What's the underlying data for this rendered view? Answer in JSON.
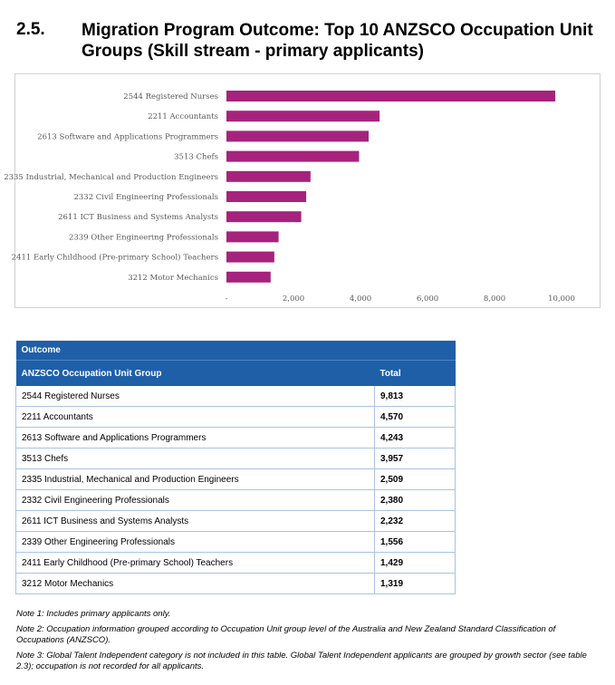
{
  "section": {
    "number": "2.5.",
    "title": "Migration Program Outcome: Top 10 ANZSCO Occupation Unit Groups (Skill stream - primary applicants)"
  },
  "chart_data": {
    "type": "bar",
    "orientation": "horizontal",
    "categories": [
      "2544 Registered Nurses",
      "2211 Accountants",
      "2613 Software and Applications Programmers",
      "3513 Chefs",
      "2335 Industrial, Mechanical and Production Engineers",
      "2332 Civil Engineering Professionals",
      "2611 ICT Business and Systems Analysts",
      "2339 Other Engineering Professionals",
      "2411 Early Childhood (Pre-primary School) Teachers",
      "3212 Motor Mechanics"
    ],
    "values": [
      9813,
      4570,
      4243,
      3957,
      2509,
      2380,
      2232,
      1556,
      1429,
      1319
    ],
    "xlim": [
      0,
      10000
    ],
    "x_ticks": [
      0,
      2000,
      4000,
      6000,
      8000,
      10000
    ],
    "x_tick_labels": [
      "-",
      "2,000",
      "4,000",
      "6,000",
      "8,000",
      "10,000"
    ],
    "bar_color": "#a5237c",
    "grid": false
  },
  "table": {
    "group_header": "Outcome",
    "col_occupation": "ANZSCO Occupation Unit Group",
    "col_total": "Total",
    "rows": [
      {
        "occupation": "2544 Registered Nurses",
        "total": "9,813"
      },
      {
        "occupation": "2211 Accountants",
        "total": "4,570"
      },
      {
        "occupation": "2613 Software and Applications Programmers",
        "total": "4,243"
      },
      {
        "occupation": "3513 Chefs",
        "total": "3,957"
      },
      {
        "occupation": "2335 Industrial, Mechanical and Production Engineers",
        "total": "2,509"
      },
      {
        "occupation": "2332 Civil Engineering Professionals",
        "total": "2,380"
      },
      {
        "occupation": "2611 ICT Business and Systems Analysts",
        "total": "2,232"
      },
      {
        "occupation": "2339 Other Engineering Professionals",
        "total": "1,556"
      },
      {
        "occupation": "2411 Early Childhood (Pre-primary School) Teachers",
        "total": "1,429"
      },
      {
        "occupation": "3212 Motor Mechanics",
        "total": "1,319"
      }
    ],
    "header_color": "#1f5fa8"
  },
  "notes": [
    "Note 1: Includes primary applicants only.",
    "Note 2: Occupation information grouped according to Occupation Unit group level of the Australia and New Zealand Standard Classification of Occupations (ANZSCO).",
    "Note 3: Global Talent Independent category is not included in this table. Global Talent Independent applicants are grouped by growth sector (see table 2.3); occupation is not recorded for all applicants."
  ]
}
